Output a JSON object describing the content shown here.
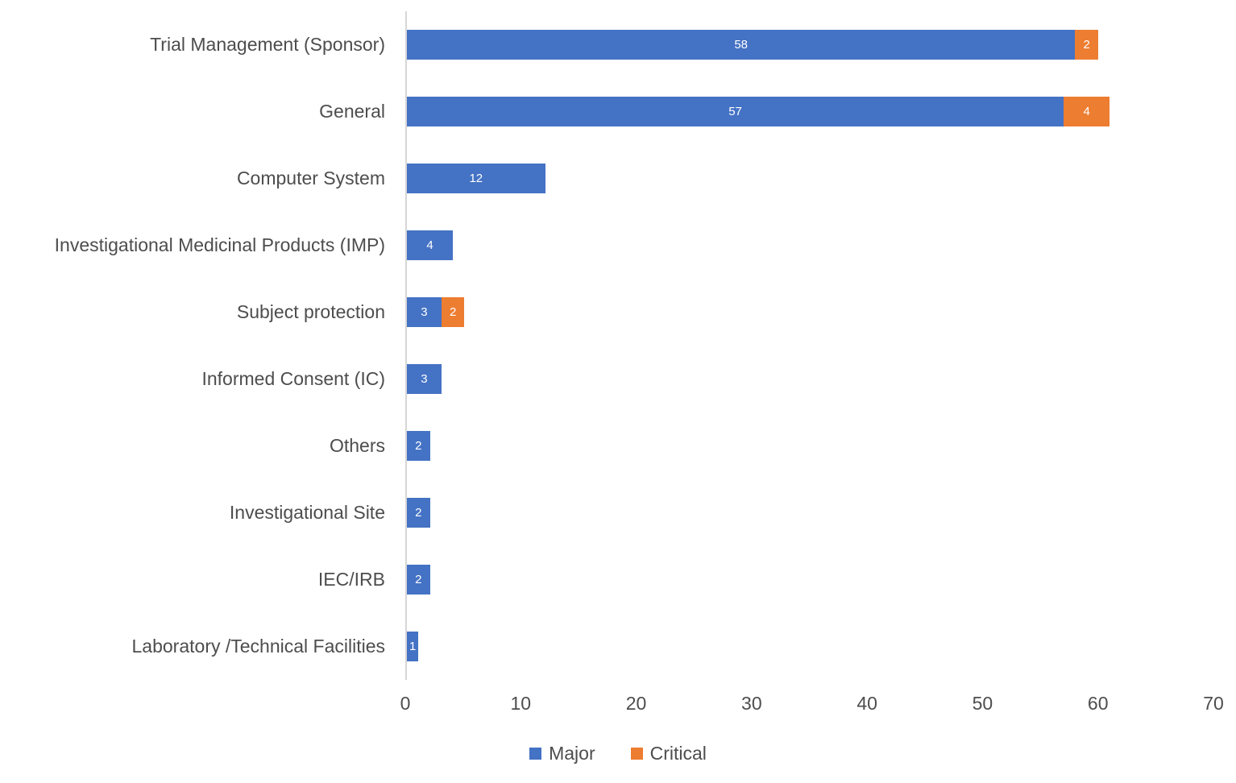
{
  "chart_data": {
    "type": "bar",
    "orientation": "horizontal",
    "stacked": true,
    "title": "",
    "xlabel": "",
    "ylabel": "",
    "categories": [
      "Trial Management (Sponsor)",
      "General",
      "Computer System",
      "Investigational Medicinal Products (IMP)",
      "Subject protection",
      "Informed Consent (IC)",
      "Others",
      "Investigational Site",
      "IEC/IRB",
      "Laboratory /Technical Facilities"
    ],
    "series": [
      {
        "name": "Major",
        "color": "#4472C4",
        "values": [
          58,
          57,
          12,
          4,
          3,
          3,
          2,
          2,
          2,
          1
        ]
      },
      {
        "name": "Critical",
        "color": "#ED7D31",
        "values": [
          2,
          4,
          0,
          0,
          2,
          0,
          0,
          0,
          0,
          0
        ]
      }
    ],
    "xlim": [
      0,
      70
    ],
    "x_ticks": [
      0,
      10,
      20,
      30,
      40,
      50,
      60,
      70
    ],
    "show_value_labels": true,
    "value_label_color": "#ffffff",
    "grid": false,
    "legend_position": "bottom",
    "axis_line_color": "#d6d6d6",
    "text_color": "#4d4d4d"
  }
}
